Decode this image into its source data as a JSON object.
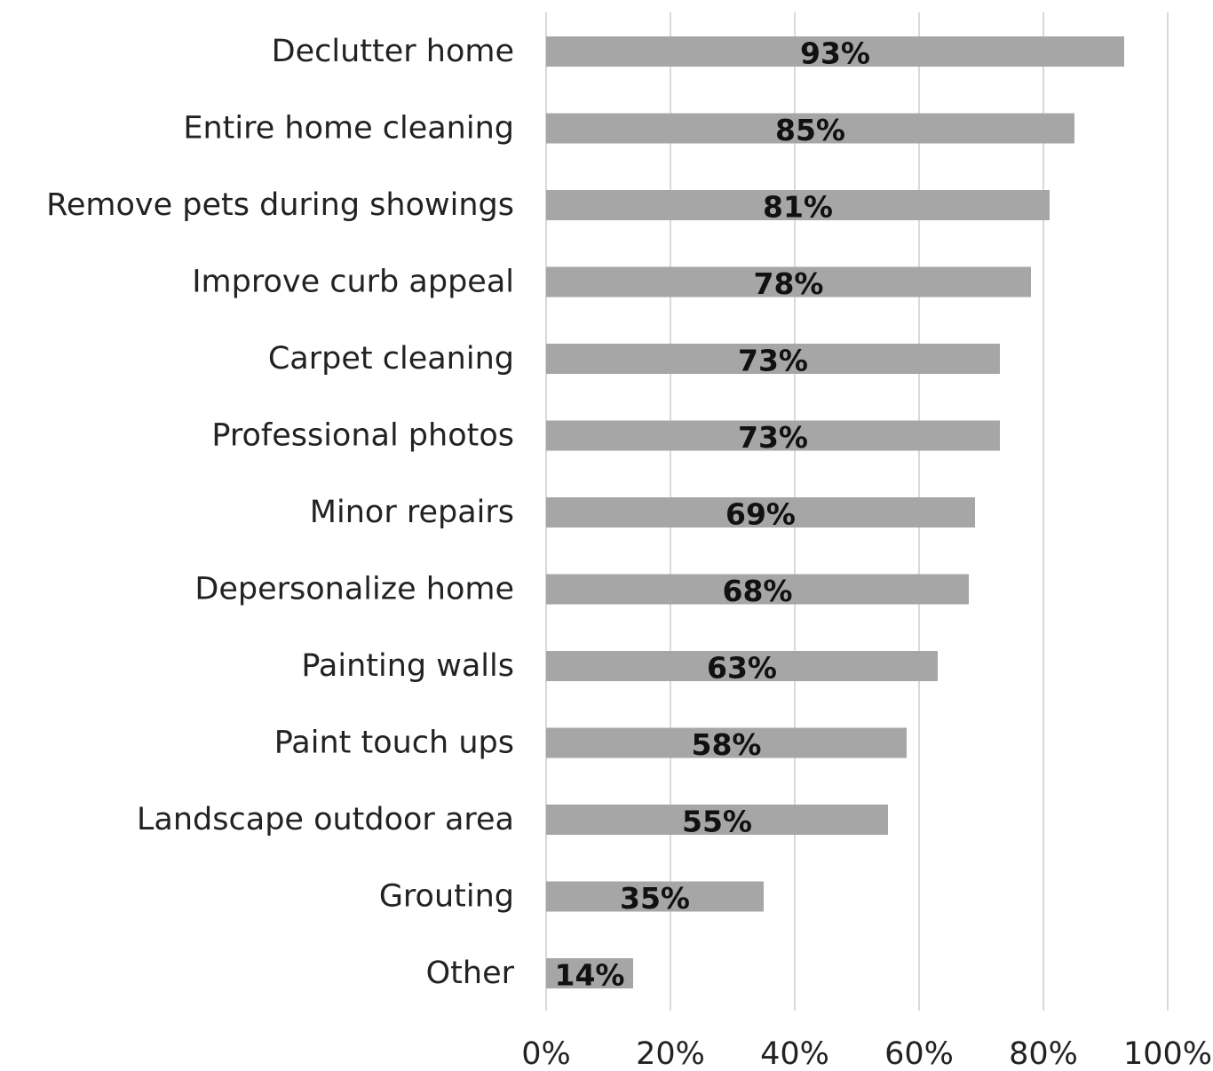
{
  "colors": {
    "bar": "#a6a6a6",
    "grid": "#d9d9d9",
    "text": "#222222",
    "data_label": "#111111",
    "background": "#ffffff"
  },
  "chart_data": {
    "type": "bar",
    "orientation": "horizontal",
    "title": "",
    "xlabel": "",
    "ylabel": "",
    "categories": [
      "Declutter home",
      "Entire home cleaning",
      "Remove pets during showings",
      "Improve curb appeal",
      "Carpet cleaning",
      "Professional photos",
      "Minor repairs",
      "Depersonalize home",
      "Painting walls",
      "Paint touch ups",
      "Landscape outdoor area",
      "Grouting",
      "Other"
    ],
    "values": [
      93,
      85,
      81,
      78,
      73,
      73,
      69,
      68,
      63,
      58,
      55,
      35,
      14
    ],
    "data_labels": [
      "93%",
      "85%",
      "81%",
      "78%",
      "73%",
      "73%",
      "69%",
      "68%",
      "63%",
      "58%",
      "55%",
      "35%",
      "14%"
    ],
    "xlim": [
      0,
      100
    ],
    "x_ticks": [
      0,
      20,
      40,
      60,
      80,
      100
    ],
    "x_tick_labels": [
      "0%",
      "20%",
      "40%",
      "60%",
      "80%",
      "100%"
    ],
    "grid": "vertical",
    "legend": "none"
  }
}
